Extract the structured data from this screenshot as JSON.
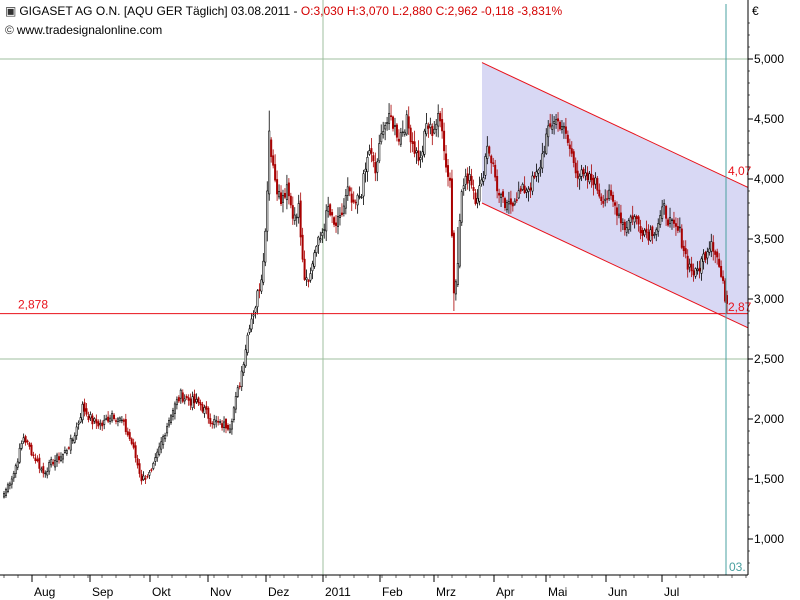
{
  "header": {
    "icon": "candlestick-icon",
    "title": "GIGASET AG O.N. [AQU GER  Täglich] 03.08.2011",
    "ohlc_text": "O:3,030 H:3,070 L:2,880 C:2,962 -0,118 -3,831%"
  },
  "source": {
    "icon": "copyright-icon",
    "text": "www.tradesignalonline.com"
  },
  "currency": "€",
  "colors": {
    "up": "#000000",
    "down": "#a80000",
    "accent_red": "#e8111a",
    "channel_fill": "#d8d8f4",
    "grid": "#9fbf9f",
    "cursor": "#4aa0a0"
  },
  "chart_data": {
    "type": "candlestick",
    "title": "GIGASET AG O.N. [AQU GER  Täglich] 03.08.2011",
    "ylabel": "€",
    "ylim": [
      0.75,
      5.35
    ],
    "y_ticks": [
      "1,000",
      "1,500",
      "2,000",
      "2,500",
      "3,000",
      "3,500",
      "4,000",
      "4,500",
      "5,000"
    ],
    "x_labels": [
      "Aug",
      "Sep",
      "Okt",
      "Nov",
      "Dez",
      "2011",
      "Feb",
      "Mrz",
      "Apr",
      "Mai",
      "Jun",
      "Jul"
    ],
    "last_bar_label": "03.",
    "horizontal_line": {
      "value": 2.878,
      "label": "2,878",
      "right_label": "2,87"
    },
    "channel": {
      "upper_label": "4,07",
      "lower_label": "2,87",
      "upper_start": 4.97,
      "upper_end": 3.93,
      "lower_start": 3.8,
      "lower_end": 2.76
    },
    "close_anchors": [
      [
        0,
        1.38
      ],
      [
        5,
        1.55
      ],
      [
        10,
        1.85
      ],
      [
        15,
        1.7
      ],
      [
        20,
        1.55
      ],
      [
        25,
        1.65
      ],
      [
        30,
        1.7
      ],
      [
        35,
        1.83
      ],
      [
        38,
        1.98
      ],
      [
        40,
        2.1
      ],
      [
        45,
        1.98
      ],
      [
        50,
        1.95
      ],
      [
        55,
        2.05
      ],
      [
        60,
        1.98
      ],
      [
        65,
        1.8
      ],
      [
        70,
        1.5
      ],
      [
        75,
        1.55
      ],
      [
        80,
        1.8
      ],
      [
        85,
        2.05
      ],
      [
        90,
        2.2
      ],
      [
        95,
        2.15
      ],
      [
        100,
        2.12
      ],
      [
        105,
        2.0
      ],
      [
        110,
        1.95
      ],
      [
        115,
        1.95
      ],
      [
        120,
        2.3
      ],
      [
        125,
        2.8
      ],
      [
        128,
        2.95
      ],
      [
        131,
        3.2
      ],
      [
        133,
        3.55
      ],
      [
        135,
        4.35
      ],
      [
        138,
        4.0
      ],
      [
        141,
        3.8
      ],
      [
        144,
        3.9
      ],
      [
        147,
        3.7
      ],
      [
        150,
        3.75
      ],
      [
        153,
        3.2
      ],
      [
        156,
        3.2
      ],
      [
        158,
        3.4
      ],
      [
        161,
        3.5
      ],
      [
        165,
        3.75
      ],
      [
        168,
        3.6
      ],
      [
        171,
        3.65
      ],
      [
        175,
        3.9
      ],
      [
        178,
        3.75
      ],
      [
        182,
        3.9
      ],
      [
        186,
        4.25
      ],
      [
        189,
        4.05
      ],
      [
        193,
        4.45
      ],
      [
        197,
        4.5
      ],
      [
        201,
        4.35
      ],
      [
        205,
        4.48
      ],
      [
        209,
        4.25
      ],
      [
        212,
        4.15
      ],
      [
        215,
        4.45
      ],
      [
        218,
        4.4
      ],
      [
        221,
        4.5
      ],
      [
        223,
        4.45
      ],
      [
        225,
        4.1
      ],
      [
        227,
        4.0
      ],
      [
        229,
        3.05
      ],
      [
        231,
        3.35
      ],
      [
        233,
        3.9
      ],
      [
        237,
        4.05
      ],
      [
        240,
        3.85
      ],
      [
        243,
        3.95
      ],
      [
        246,
        4.3
      ],
      [
        249,
        4.1
      ],
      [
        252,
        3.85
      ],
      [
        256,
        3.75
      ],
      [
        260,
        3.85
      ],
      [
        264,
        3.9
      ],
      [
        268,
        3.95
      ],
      [
        272,
        4.05
      ],
      [
        276,
        4.35
      ],
      [
        280,
        4.5
      ],
      [
        284,
        4.45
      ],
      [
        288,
        4.25
      ],
      [
        292,
        4.05
      ],
      [
        296,
        4.0
      ],
      [
        300,
        4.0
      ],
      [
        304,
        3.85
      ],
      [
        308,
        3.85
      ],
      [
        312,
        3.75
      ],
      [
        316,
        3.6
      ],
      [
        320,
        3.7
      ],
      [
        324,
        3.6
      ],
      [
        328,
        3.55
      ],
      [
        332,
        3.6
      ],
      [
        336,
        3.75
      ],
      [
        340,
        3.6
      ],
      [
        344,
        3.55
      ],
      [
        348,
        3.3
      ],
      [
        352,
        3.2
      ],
      [
        356,
        3.35
      ],
      [
        360,
        3.5
      ],
      [
        363,
        3.35
      ],
      [
        366,
        3.1
      ],
      [
        368,
        2.962
      ]
    ]
  }
}
